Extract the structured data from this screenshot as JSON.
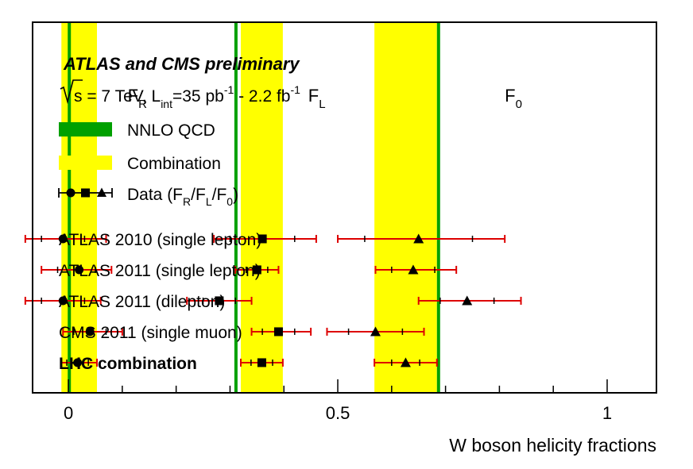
{
  "chart_data": {
    "type": "scatter",
    "title": "ATLAS and CMS preliminary",
    "subtitle": {
      "sqrt_s": "s",
      "energy": " = 7 TeV, L",
      "int_sub": "int",
      "lumi1": "=35 pb",
      "exp1": "-1",
      "lumi2": " - 2.2 fb",
      "exp2": "-1"
    },
    "xlabel": "W boson helicity fractions",
    "xlim": [
      -0.065,
      1.09
    ],
    "x_ticks": [
      {
        "value": 0,
        "label": "0"
      },
      {
        "value": 0.5,
        "label": "0.5"
      },
      {
        "value": 1,
        "label": "1"
      }
    ],
    "fraction_labels": [
      {
        "main": "F",
        "sub": "R",
        "x": 0.11
      },
      {
        "main": "F",
        "sub": "L",
        "x": 0.445
      },
      {
        "main": "F",
        "sub": "0",
        "x": 0.81
      }
    ],
    "legend": {
      "nnlo": "NNLO QCD",
      "combination": "Combination",
      "data_prefix": "Data (F",
      "data_r": "R",
      "slash1": "/F",
      "data_l": "L",
      "slash2": "/F",
      "data_0": "0",
      "data_suffix": ")"
    },
    "nnlo_qcd": [
      0.0017,
      0.311,
      0.687
    ],
    "combination_bands": [
      {
        "center": 0.017,
        "low": -0.013,
        "high": 0.053
      },
      {
        "center": 0.359,
        "low": 0.32,
        "high": 0.398
      },
      {
        "center": 0.626,
        "low": 0.568,
        "high": 0.684
      }
    ],
    "colors": {
      "nnlo": "#00A000",
      "combination": "#FFFF00",
      "error_bar": "#DD0000",
      "marker": "#000000",
      "frame": "#000000"
    },
    "series": [
      {
        "label": "ATLAS 2010 (single lepton)",
        "bold": false,
        "points": [
          {
            "fraction": "F_R",
            "marker": "circle",
            "value": -0.01,
            "stat_low": -0.05,
            "stat_high": 0.03,
            "tot_low": -0.08,
            "tot_high": 0.07
          },
          {
            "fraction": "F_L",
            "marker": "square",
            "value": 0.36,
            "stat_low": 0.3,
            "stat_high": 0.42,
            "tot_low": 0.27,
            "tot_high": 0.46
          },
          {
            "fraction": "F_0",
            "marker": "triangle",
            "value": 0.65,
            "stat_low": 0.55,
            "stat_high": 0.75,
            "tot_low": 0.5,
            "tot_high": 0.81
          }
        ]
      },
      {
        "label": "ATLAS 2011 (single lepton)",
        "bold": false,
        "points": [
          {
            "fraction": "F_R",
            "marker": "circle",
            "value": 0.02,
            "stat_low": -0.02,
            "stat_high": 0.05,
            "tot_low": -0.05,
            "tot_high": 0.08
          },
          {
            "fraction": "F_L",
            "marker": "square",
            "value": 0.35,
            "stat_low": 0.33,
            "stat_high": 0.37,
            "tot_low": 0.31,
            "tot_high": 0.39
          },
          {
            "fraction": "F_0",
            "marker": "triangle",
            "value": 0.64,
            "stat_low": 0.6,
            "stat_high": 0.68,
            "tot_low": 0.57,
            "tot_high": 0.72
          }
        ]
      },
      {
        "label": "ATLAS 2011 (dilepton)",
        "bold": false,
        "points": [
          {
            "fraction": "F_R",
            "marker": "circle",
            "value": -0.01,
            "stat_low": -0.05,
            "stat_high": 0.03,
            "tot_low": -0.08,
            "tot_high": 0.06
          },
          {
            "fraction": "F_L",
            "marker": "square",
            "value": 0.28,
            "stat_low": 0.25,
            "stat_high": 0.31,
            "tot_low": 0.22,
            "tot_high": 0.34
          },
          {
            "fraction": "F_0",
            "marker": "triangle",
            "value": 0.74,
            "stat_low": 0.69,
            "stat_high": 0.79,
            "tot_low": 0.65,
            "tot_high": 0.84
          }
        ]
      },
      {
        "label": "CMS 2011 (single muon)",
        "bold": false,
        "points": [
          {
            "fraction": "F_R",
            "marker": "circle",
            "value": 0.04,
            "stat_low": 0.01,
            "stat_high": 0.07,
            "tot_low": -0.01,
            "tot_high": 0.1
          },
          {
            "fraction": "F_L",
            "marker": "square",
            "value": 0.39,
            "stat_low": 0.36,
            "stat_high": 0.42,
            "tot_low": 0.34,
            "tot_high": 0.45
          },
          {
            "fraction": "F_0",
            "marker": "triangle",
            "value": 0.57,
            "stat_low": 0.52,
            "stat_high": 0.62,
            "tot_low": 0.48,
            "tot_high": 0.66
          }
        ]
      },
      {
        "label": "LHC combination",
        "bold": true,
        "points": [
          {
            "fraction": "F_R",
            "marker": "circle",
            "value": 0.017,
            "stat_low": -0.003,
            "stat_high": 0.037,
            "tot_low": -0.013,
            "tot_high": 0.053
          },
          {
            "fraction": "F_L",
            "marker": "square",
            "value": 0.359,
            "stat_low": 0.339,
            "stat_high": 0.379,
            "tot_low": 0.32,
            "tot_high": 0.398
          },
          {
            "fraction": "F_0",
            "marker": "triangle",
            "value": 0.626,
            "stat_low": 0.6,
            "stat_high": 0.652,
            "tot_low": 0.568,
            "tot_high": 0.684
          }
        ]
      }
    ]
  }
}
